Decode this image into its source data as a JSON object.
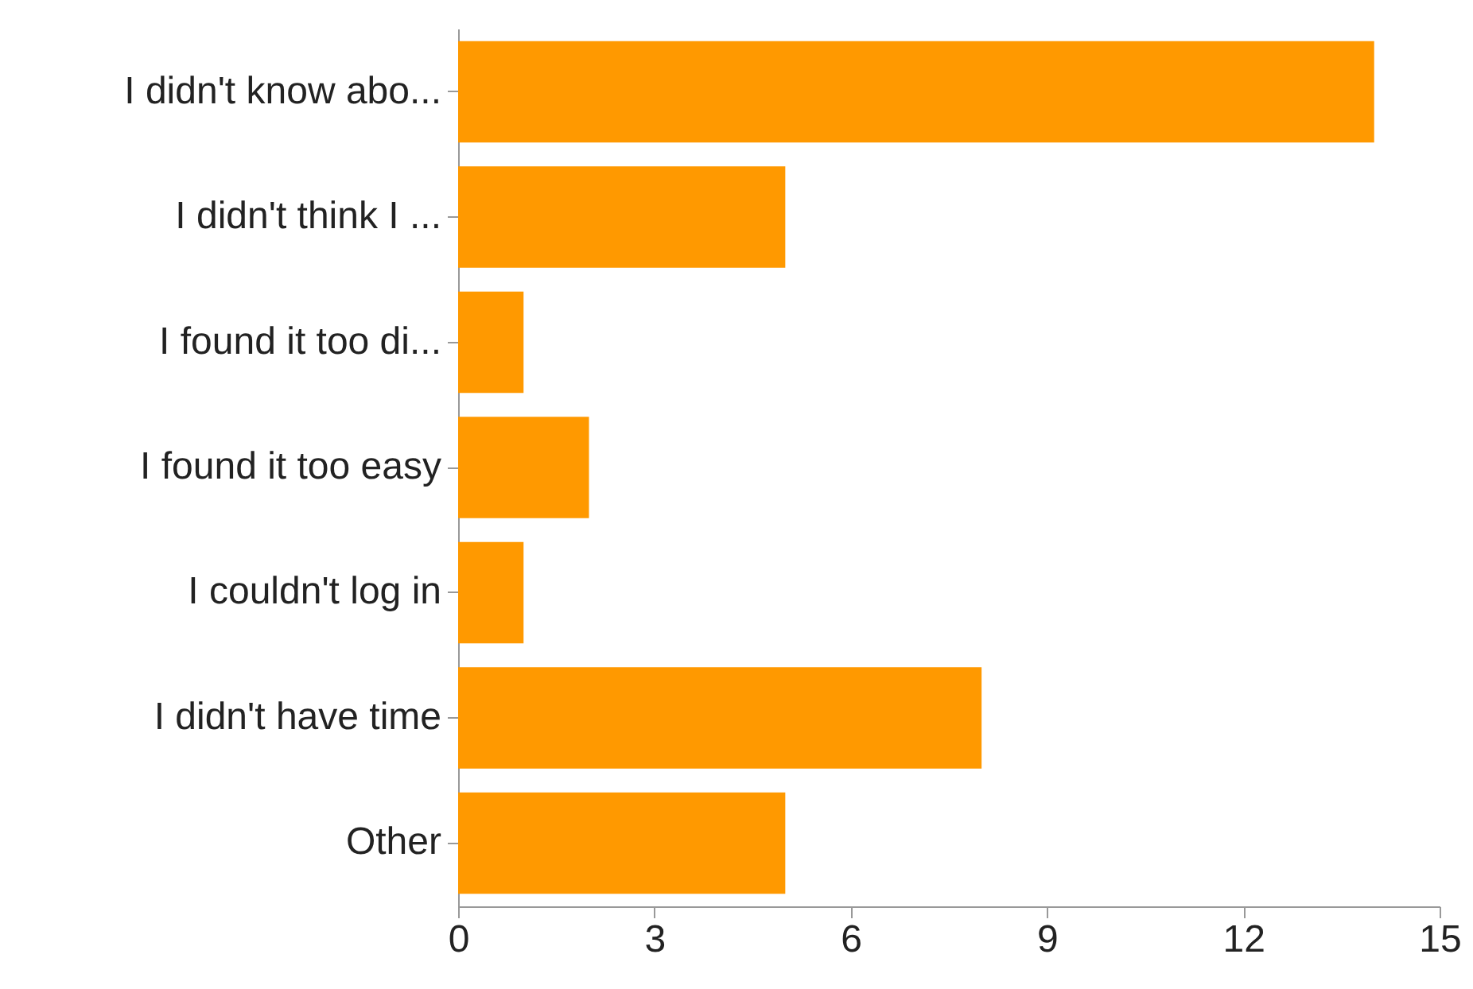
{
  "chart_data": {
    "type": "bar",
    "orientation": "horizontal",
    "categories": [
      "I didn't know abo...",
      "I didn't think I ...",
      "I found it too di...",
      "I found it too easy",
      "I couldn't log in",
      "I didn't have time",
      "Other"
    ],
    "values": [
      14,
      5,
      1,
      2,
      1,
      8,
      5
    ],
    "color": "#ff9900",
    "xlim": [
      0,
      15
    ],
    "xticks": [
      0,
      3,
      6,
      9,
      12,
      15
    ],
    "grid": false
  }
}
